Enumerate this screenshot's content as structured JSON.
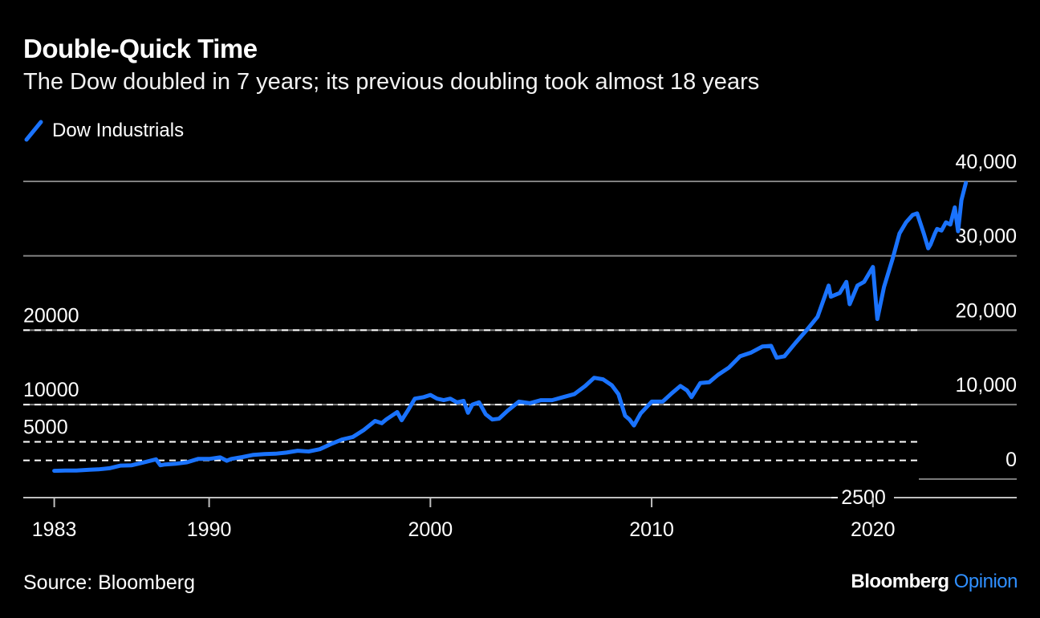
{
  "header": {
    "title": "Double-Quick Time",
    "subtitle": "The Dow doubled in 7 years; its previous doubling took almost 18 years"
  },
  "legend": {
    "label": "Dow Industrials",
    "icon": "line-swatch-icon"
  },
  "footer": {
    "source": "Source: Bloomberg",
    "brand_main": "Bloomberg",
    "brand_accent": "Opinion"
  },
  "colors": {
    "background": "#000000",
    "series": "#1a73ff",
    "grid": "#808080",
    "reference": "#ffffff",
    "text": "#ffffff"
  },
  "chart_data": {
    "type": "line",
    "title": "Double-Quick Time",
    "subtitle": "The Dow doubled in 7 years; its previous doubling took almost 18 years",
    "xlabel": "",
    "ylabel": "",
    "xlim": [
      1981.6,
      2026.5
    ],
    "ylim": [
      -2500,
      40000
    ],
    "x_ticks": [
      1983,
      1990,
      2000,
      2010,
      2020
    ],
    "x_tick_labels": [
      "1983",
      "1990",
      "2000",
      "2010",
      "2020"
    ],
    "y_ticks": [
      0,
      10000,
      20000,
      30000,
      40000
    ],
    "y_tick_labels": [
      "0",
      "10,000",
      "20,000",
      "30,000",
      "40,000"
    ],
    "y_axis_side": "right",
    "y_floor_label": "2500",
    "grid": true,
    "legend_position": "top-left",
    "reference_lines": [
      {
        "value": 2500,
        "label": "",
        "style": "dashed"
      },
      {
        "value": 5000,
        "label": "5000",
        "style": "dashed"
      },
      {
        "value": 10000,
        "label": "10000",
        "style": "dashed"
      },
      {
        "value": 20000,
        "label": "20000",
        "style": "dashed"
      }
    ],
    "series": [
      {
        "name": "Dow Industrials",
        "x": [
          1983.0,
          1983.5,
          1984.0,
          1984.6,
          1985.0,
          1985.5,
          1986.0,
          1986.5,
          1987.0,
          1987.6,
          1987.8,
          1988.0,
          1988.5,
          1989.0,
          1989.5,
          1990.0,
          1990.5,
          1990.8,
          1991.0,
          1991.5,
          1992.0,
          1992.5,
          1993.0,
          1993.5,
          1994.0,
          1994.5,
          1995.0,
          1995.5,
          1996.0,
          1996.5,
          1997.0,
          1997.5,
          1997.8,
          1998.0,
          1998.5,
          1998.7,
          1999.0,
          1999.3,
          1999.7,
          2000.0,
          2000.3,
          2000.6,
          2000.9,
          2001.2,
          2001.5,
          2001.7,
          2001.9,
          2002.2,
          2002.5,
          2002.8,
          2003.1,
          2003.5,
          2004.0,
          2004.5,
          2005.0,
          2005.5,
          2006.0,
          2006.5,
          2007.0,
          2007.4,
          2007.8,
          2008.2,
          2008.5,
          2008.8,
          2009.0,
          2009.2,
          2009.5,
          2010.0,
          2010.5,
          2010.9,
          2011.3,
          2011.6,
          2011.8,
          2012.2,
          2012.6,
          2013.0,
          2013.5,
          2014.0,
          2014.5,
          2015.0,
          2015.4,
          2015.65,
          2016.0,
          2016.5,
          2017.0,
          2017.5,
          2018.0,
          2018.1,
          2018.5,
          2018.8,
          2018.95,
          2019.3,
          2019.6,
          2020.0,
          2020.2,
          2020.5,
          2020.9,
          2021.2,
          2021.5,
          2021.8,
          2022.0,
          2022.3,
          2022.5,
          2022.6,
          2022.8,
          2022.9,
          2023.1,
          2023.3,
          2023.5,
          2023.7,
          2023.85,
          2024.0,
          2024.2
        ],
        "values": [
          1100,
          1150,
          1150,
          1250,
          1300,
          1450,
          1800,
          1850,
          2200,
          2650,
          1850,
          1950,
          2050,
          2250,
          2700,
          2700,
          2900,
          2450,
          2700,
          2950,
          3250,
          3350,
          3400,
          3550,
          3800,
          3700,
          4000,
          4700,
          5300,
          5650,
          6600,
          7800,
          7500,
          8000,
          9000,
          7900,
          9300,
          10800,
          11000,
          11300,
          10800,
          10600,
          10800,
          10300,
          10500,
          8900,
          10000,
          10300,
          8700,
          8000,
          8100,
          9200,
          10400,
          10200,
          10600,
          10600,
          11000,
          11400,
          12500,
          13600,
          13400,
          12600,
          11400,
          8500,
          8000,
          7200,
          8800,
          10400,
          10400,
          11500,
          12500,
          11900,
          11000,
          12900,
          13000,
          14000,
          15000,
          16500,
          17000,
          17800,
          17900,
          16300,
          16500,
          18300,
          20000,
          21800,
          26000,
          24500,
          25000,
          26500,
          23500,
          26000,
          26500,
          28500,
          21500,
          25800,
          29700,
          33000,
          34500,
          35500,
          35700,
          33000,
          31000,
          31500,
          33000,
          33600,
          33400,
          34500,
          34200,
          36500,
          33300,
          37500,
          39800
        ]
      }
    ]
  }
}
